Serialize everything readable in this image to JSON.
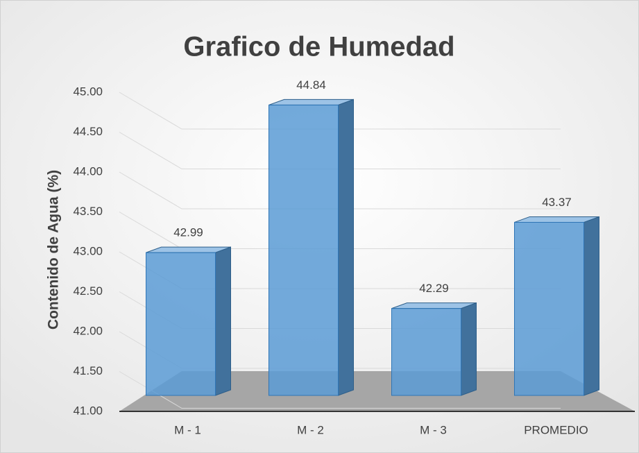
{
  "chart_data": {
    "type": "bar",
    "title": "Grafico de Humedad",
    "ylabel": "Contenido de Agua (%)",
    "categories": [
      "M - 1",
      "M - 2",
      "M - 3",
      "PROMEDIO"
    ],
    "values": [
      42.99,
      44.84,
      42.29,
      43.37
    ],
    "color": "#5b9bd5",
    "ylim": [
      41,
      45
    ],
    "yticks": [
      {
        "value": 41,
        "label": "41.00"
      },
      {
        "value": 41.5,
        "label": "41.50"
      },
      {
        "value": 42,
        "label": "42.00"
      },
      {
        "value": 42.5,
        "label": "42.50"
      },
      {
        "value": 43,
        "label": "43.00"
      },
      {
        "value": 43.5,
        "label": "43.50"
      },
      {
        "value": 44,
        "label": "44.00"
      },
      {
        "value": 44.5,
        "label": "44.50"
      },
      {
        "value": 45,
        "label": "45.00"
      }
    ],
    "grid": true
  }
}
